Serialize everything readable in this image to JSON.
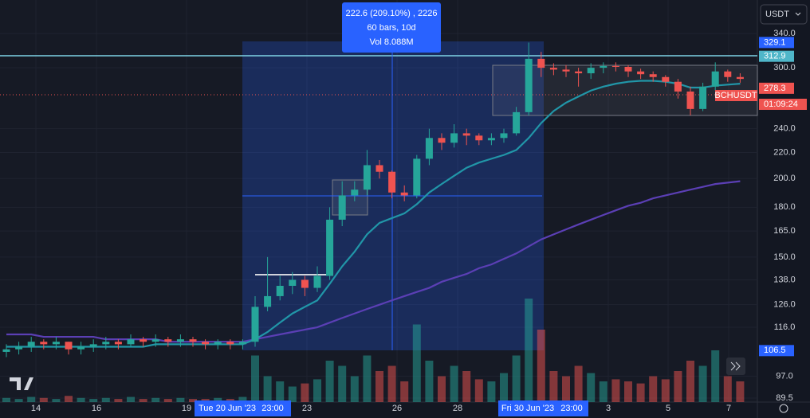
{
  "toolbar": {
    "currency": "USDT"
  },
  "measure": {
    "lines": [
      "222.6 (209.10%) , 2226",
      "60 bars, 10d",
      "Vol 8.088M"
    ]
  },
  "x_labels": [
    "14",
    "16",
    "19",
    "Tue 20 Jun '23",
    "23:00",
    "23",
    "26",
    "28",
    "Fri 30 Jun '23",
    "23:00",
    "3",
    "5",
    "7"
  ],
  "price_labels": [
    329.1,
    312.9,
    278.3,
    106.5
  ],
  "symbol": "BCHUSDT",
  "countdown": "01:09:24",
  "chart_data": {
    "type": "candlestick",
    "log": true,
    "ylim": [
      88.2,
      384.5
    ],
    "yticks": [
      {
        "value": 340,
        "label": "340.0"
      },
      {
        "value": 300,
        "label": "300.0"
      },
      {
        "value": 240,
        "label": "240.0"
      },
      {
        "value": 220,
        "label": "220.0"
      },
      {
        "value": 200,
        "label": "200.0"
      },
      {
        "value": 180,
        "label": "180.0"
      },
      {
        "value": 165,
        "label": "165.0"
      },
      {
        "value": 150,
        "label": "150.0"
      },
      {
        "value": 138,
        "label": "138.0"
      },
      {
        "value": 126,
        "label": "126.0"
      },
      {
        "value": 116,
        "label": "116.0"
      },
      {
        "value": 97,
        "label": "97.0"
      },
      89.5
    ],
    "up_color": "#26a69a",
    "down_color": "#ef5350",
    "ema_color": "#2196a8",
    "ma_color": "#5b3fb5",
    "open": [
      106,
      107,
      108,
      110,
      109,
      110,
      107,
      108,
      109,
      110,
      109,
      111,
      110,
      111,
      110,
      111,
      110,
      109,
      110,
      109,
      110,
      125,
      130,
      135,
      138,
      134,
      140,
      172,
      188,
      192,
      210,
      205,
      190,
      188,
      215,
      232,
      228,
      236,
      234,
      230,
      232,
      236,
      255,
      310,
      300,
      298,
      296,
      294,
      300,
      302,
      301,
      296,
      293,
      290,
      285,
      275,
      258,
      280,
      296,
      290
    ],
    "high": [
      109,
      110,
      112,
      111,
      112,
      110,
      110,
      111,
      112,
      111,
      113,
      112,
      113,
      112,
      113,
      112,
      111,
      111,
      111,
      111,
      130,
      150,
      140,
      142,
      140,
      145,
      180,
      198,
      198,
      222,
      214,
      206,
      195,
      218,
      240,
      236,
      244,
      240,
      236,
      236,
      240,
      260,
      329,
      318,
      305,
      303,
      300,
      305,
      306,
      306,
      303,
      299,
      296,
      292,
      288,
      280,
      284,
      306,
      298,
      294
    ],
    "low": [
      104,
      105,
      106,
      107,
      107,
      105,
      105,
      106,
      107,
      107,
      108,
      108,
      108,
      108,
      108,
      108,
      107,
      107,
      107,
      107,
      108,
      123,
      128,
      131,
      130,
      132,
      138,
      168,
      184,
      188,
      200,
      186,
      184,
      186,
      210,
      222,
      224,
      226,
      226,
      226,
      228,
      234,
      252,
      290,
      292,
      290,
      280,
      288,
      294,
      296,
      290,
      288,
      285,
      280,
      268,
      252,
      256,
      276,
      285,
      284
    ],
    "close": [
      107,
      108,
      110,
      109,
      110,
      107,
      108,
      109,
      110,
      109,
      111,
      110,
      111,
      110,
      111,
      110,
      109,
      110,
      109,
      110,
      125,
      130,
      135,
      138,
      134,
      140,
      172,
      188,
      192,
      210,
      205,
      190,
      188,
      215,
      232,
      228,
      236,
      234,
      230,
      232,
      236,
      255,
      310,
      300,
      298,
      296,
      294,
      300,
      302,
      301,
      296,
      293,
      290,
      285,
      275,
      258,
      280,
      296,
      290,
      288
    ],
    "volume": [
      4,
      3,
      5,
      4,
      3,
      6,
      4,
      3,
      4,
      3,
      5,
      3,
      4,
      3,
      4,
      3,
      3,
      4,
      3,
      5,
      45,
      25,
      20,
      15,
      18,
      22,
      40,
      35,
      25,
      45,
      30,
      35,
      20,
      75,
      40,
      25,
      35,
      30,
      22,
      20,
      28,
      45,
      100,
      70,
      30,
      25,
      35,
      28,
      20,
      22,
      20,
      18,
      25,
      22,
      30,
      40,
      35,
      50,
      25,
      20
    ],
    "ema": [
      108,
      108,
      108,
      108,
      108,
      108,
      108,
      108,
      108,
      108,
      108,
      108,
      109,
      109,
      109,
      109,
      109,
      109,
      109,
      109,
      111,
      114,
      118,
      122,
      125,
      128,
      136,
      145,
      153,
      163,
      170,
      173,
      176,
      182,
      190,
      196,
      202,
      208,
      212,
      215,
      218,
      222,
      232,
      245,
      256,
      264,
      270,
      276,
      280,
      283,
      285,
      286,
      286,
      285,
      283,
      279,
      279,
      281,
      282,
      283
    ],
    "ma": [
      113,
      113,
      113,
      112,
      112,
      112,
      112,
      112,
      111,
      111,
      111,
      111,
      111,
      110,
      110,
      110,
      110,
      110,
      110,
      110,
      111,
      112,
      113,
      114,
      115,
      116,
      118,
      120,
      122,
      124,
      126,
      128,
      130,
      132,
      134,
      137,
      139,
      141,
      144,
      146,
      149,
      152,
      156,
      160,
      163,
      166,
      169,
      172,
      175,
      178,
      181,
      183,
      186,
      188,
      190,
      192,
      194,
      196,
      197,
      198
    ]
  }
}
